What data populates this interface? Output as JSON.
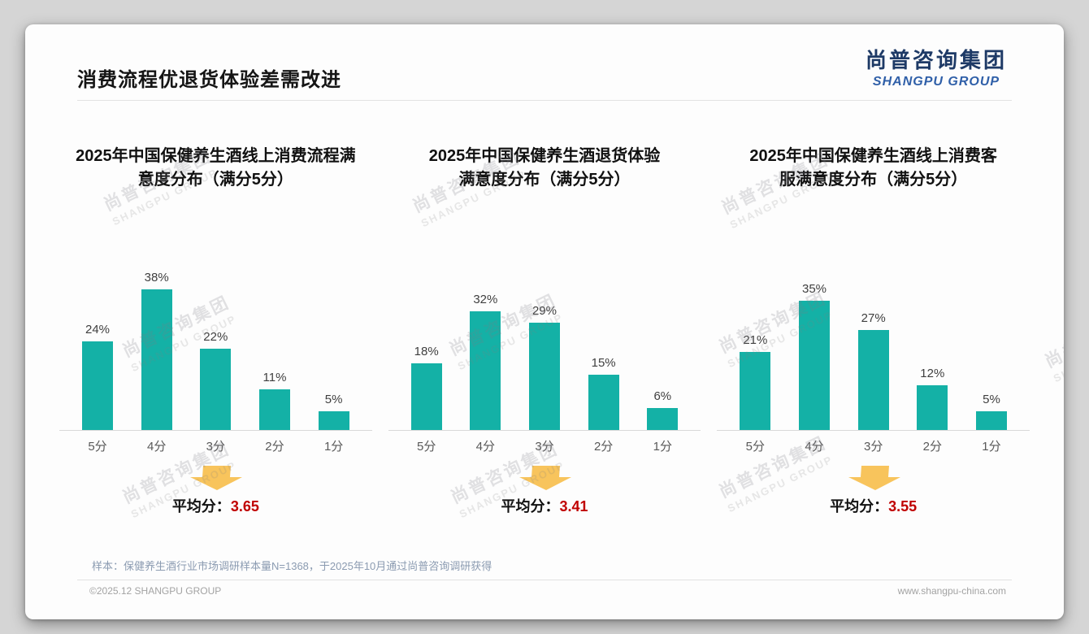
{
  "header": {
    "title": "消费流程优退货体验差需改进"
  },
  "logo": {
    "zh": "尚普咨询集团",
    "en": "SHANGPU GROUP"
  },
  "watermark": {
    "zh": "尚普咨询集团",
    "en": "SHANGPU GROUP"
  },
  "colors": {
    "bar": "#14b1a6",
    "arrow": "#f8c45c",
    "avg_value": "#c00000",
    "logo_zh": "#1e3a66",
    "logo_en": "#2f5fa8"
  },
  "chart_data": [
    {
      "type": "bar",
      "title": "2025年中国保健养生酒线上消费流程满\n意度分布（满分5分）",
      "categories": [
        "5分",
        "4分",
        "3分",
        "2分",
        "1分"
      ],
      "values": [
        24,
        38,
        22,
        11,
        5
      ],
      "value_labels": [
        "24%",
        "38%",
        "22%",
        "11%",
        "5%"
      ],
      "xlabel": "",
      "ylabel": "",
      "ylim": [
        0,
        40
      ],
      "grid": false,
      "legend": "none",
      "avg_label": "平均分：",
      "avg_value": "3.65"
    },
    {
      "type": "bar",
      "title": "2025年中国保健养生酒退货体验\n满意度分布（满分5分）",
      "categories": [
        "5分",
        "4分",
        "3分",
        "2分",
        "1分"
      ],
      "values": [
        18,
        32,
        29,
        15,
        6
      ],
      "value_labels": [
        "18%",
        "32%",
        "29%",
        "15%",
        "6%"
      ],
      "xlabel": "",
      "ylabel": "",
      "ylim": [
        0,
        40
      ],
      "grid": false,
      "legend": "none",
      "avg_label": "平均分：",
      "avg_value": "3.41"
    },
    {
      "type": "bar",
      "title": "2025年中国保健养生酒线上消费客\n服满意度分布（满分5分）",
      "categories": [
        "5分",
        "4分",
        "3分",
        "2分",
        "1分"
      ],
      "values": [
        21,
        35,
        27,
        12,
        5
      ],
      "value_labels": [
        "21%",
        "35%",
        "27%",
        "12%",
        "5%"
      ],
      "xlabel": "",
      "ylabel": "",
      "ylim": [
        0,
        40
      ],
      "grid": false,
      "legend": "none",
      "avg_label": "平均分：",
      "avg_value": "3.55"
    }
  ],
  "footnote": "样本：保健养生酒行业市场调研样本量N=1368，于2025年10月通过尚普咨询调研获得",
  "footer": {
    "left": "©2025.12 SHANGPU GROUP",
    "right": "www.shangpu-china.com"
  }
}
